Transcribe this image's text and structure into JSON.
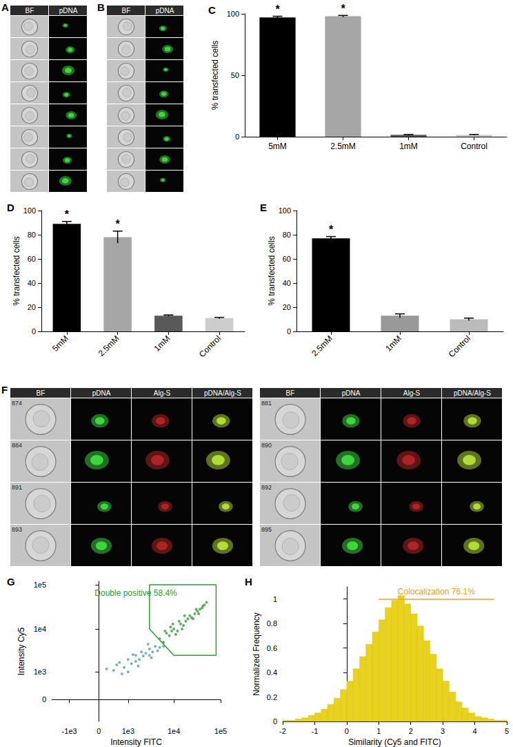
{
  "image_panels": [
    {
      "title": "A",
      "columns": [
        "BF",
        "pDNA"
      ],
      "rows": 8
    },
    {
      "title": "B",
      "columns": [
        "BF",
        "pDNA"
      ],
      "rows": 8
    },
    {
      "title": "F",
      "columns": [
        "BF",
        "pDNA",
        "Alg-S",
        "pDNA/Alg-S"
      ],
      "cell_ids": [
        [
          874,
          884,
          891,
          893
        ],
        [
          881,
          890,
          892,
          895
        ]
      ]
    }
  ],
  "chart_data": [
    {
      "title": "C",
      "type": "bar",
      "categories": [
        "5mM",
        "2.5mM",
        "1mM",
        "Control"
      ],
      "values": [
        97,
        98,
        1.5,
        1.5
      ],
      "errors": [
        1,
        0.7,
        0.3,
        0.3
      ],
      "annotations": [
        "*",
        "*",
        null,
        null
      ],
      "colors": [
        "#000000",
        "#a6a6a6",
        "#595959",
        "#cccccc"
      ],
      "ylabel": "% transfected cells",
      "ylim": [
        0,
        100
      ],
      "yticks": [
        0,
        50,
        100
      ],
      "grid": false
    },
    {
      "title": "D",
      "type": "bar",
      "categories": [
        "5mM",
        "2.5mM",
        "1mM",
        "Control"
      ],
      "values": [
        89,
        78,
        13,
        11
      ],
      "errors": [
        2,
        5,
        0.6,
        0.6
      ],
      "annotations": [
        "*",
        "*",
        null,
        null
      ],
      "colors": [
        "#000000",
        "#a6a6a6",
        "#595959",
        "#cccccc"
      ],
      "ylabel": "% transfected cells",
      "ylim": [
        0,
        100
      ],
      "yticks": [
        0,
        20,
        40,
        60,
        80,
        100
      ],
      "grid": false
    },
    {
      "title": "E",
      "type": "bar",
      "categories": [
        "2.5mM",
        "1mM",
        "Control"
      ],
      "values": [
        77,
        13,
        10
      ],
      "errors": [
        1.5,
        1.5,
        1
      ],
      "annotations": [
        "*",
        null,
        null
      ],
      "colors": [
        "#000000",
        "#999999",
        "#bbbbbb"
      ],
      "ylabel": "% transfected cells",
      "ylim": [
        0,
        100
      ],
      "yticks": [
        0,
        20,
        40,
        60,
        80,
        100
      ],
      "grid": false
    },
    {
      "title": "G",
      "type": "scatter",
      "xlabel": "Intensity FITC",
      "ylabel": "Intensity Cy5",
      "xlim": [
        -2500,
        100000
      ],
      "ylim": [
        -700,
        120000
      ],
      "xticks": [
        {
          "value": -1000,
          "label": "-1e3"
        },
        0,
        {
          "value": 1000,
          "label": "1e3"
        },
        {
          "value": 10000,
          "label": "1e4"
        },
        {
          "value": 100000,
          "label": "1e5"
        }
      ],
      "yticks": [
        0,
        {
          "value": 1000,
          "label": "1e3"
        },
        {
          "value": 10000,
          "label": "1e4"
        },
        {
          "value": 100000,
          "label": "1e5"
        }
      ],
      "marker": "circle",
      "grid": false,
      "series": [
        {
          "color": "#5b9bb8",
          "x": [
            200,
            500,
            800,
            1000,
            1200,
            1500,
            1800,
            2000,
            2500,
            3000,
            3500,
            4000,
            5000,
            6000,
            1000,
            1500,
            2200,
            3000,
            700,
            400,
            2800,
            4500,
            1300,
            1700,
            3300,
            600
          ],
          "y": [
            1200,
            1500,
            1300,
            2000,
            1600,
            2500,
            2000,
            3000,
            2800,
            3500,
            3000,
            4000,
            3800,
            4000,
            1000,
            1800,
            2400,
            2500,
            900,
            1100,
            4500,
            3200,
            2600,
            1400,
            2200,
            1700
          ]
        },
        {
          "color": "#3c9a3c",
          "x": [
            5000,
            6000,
            7000,
            8000,
            9000,
            10000,
            12000,
            14000,
            16000,
            18000,
            20000,
            24000,
            28000,
            32000,
            36000,
            40000,
            45000,
            50000,
            6500,
            8500,
            11000,
            13000,
            15000,
            22000,
            26000,
            30000,
            34000,
            42000,
            9500,
            17000
          ],
          "y": [
            6000,
            5000,
            8000,
            7000,
            9000,
            10000,
            9000,
            13000,
            12000,
            15000,
            17000,
            18000,
            22000,
            25000,
            28000,
            30000,
            35000,
            40000,
            9000,
            11000,
            7500,
            15000,
            10000,
            20000,
            17000,
            28000,
            22000,
            33000,
            13000,
            20000
          ]
        }
      ],
      "gate": {
        "label": "Double positive 58.4%",
        "color": "#2e9b2e",
        "vertices": [
          [
            3000,
            100000
          ],
          [
            80000,
            100000
          ],
          [
            80000,
            2500
          ],
          [
            10000,
            2500
          ],
          [
            3000,
            10000
          ]
        ]
      }
    },
    {
      "title": "H",
      "type": "histogram",
      "xlabel": "Similarity (Cy5 and FITC)",
      "ylabel": "Normalized Frequency",
      "bins": [
        -2,
        -1.8,
        -1.6,
        -1.4,
        -1.2,
        -1,
        -0.8,
        -0.6,
        -0.4,
        -0.2,
        0,
        0.2,
        0.4,
        0.6,
        0.8,
        1,
        1.2,
        1.4,
        1.6,
        1.8,
        2,
        2.2,
        2.4,
        2.6,
        2.8,
        3,
        3.2,
        3.4,
        3.6,
        3.8,
        4,
        4.2,
        4.4,
        4.6,
        4.8,
        5
      ],
      "counts": [
        0.01,
        0.01,
        0.02,
        0.03,
        0.05,
        0.07,
        0.1,
        0.14,
        0.19,
        0.26,
        0.33,
        0.43,
        0.53,
        0.63,
        0.73,
        0.83,
        0.93,
        0.99,
        1.03,
        0.96,
        0.88,
        0.78,
        0.66,
        0.55,
        0.43,
        0.33,
        0.24,
        0.16,
        0.11,
        0.07,
        0.04,
        0.03,
        0.02,
        0.01,
        0.01
      ],
      "color": "#e8d21d",
      "xlim": [
        -2,
        5
      ],
      "ylim": [
        0,
        1.1
      ],
      "xticks": [
        -2,
        -1,
        0,
        1,
        2,
        3,
        4,
        5
      ],
      "yticks": [
        0,
        0.2,
        0.4,
        0.6,
        0.8,
        1
      ],
      "grid": false,
      "annotation": {
        "text": "Colocalization 76.1%",
        "x": [
          1,
          4.6
        ],
        "y": 1,
        "color": "#f0a030"
      }
    }
  ]
}
